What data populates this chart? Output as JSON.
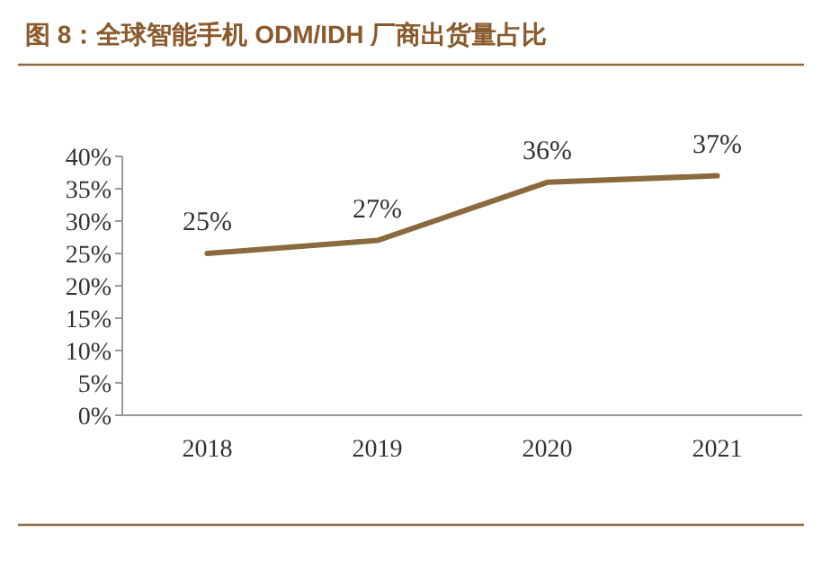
{
  "chart_data": {
    "type": "line",
    "title": "图 8：全球智能手机 ODM/IDH 厂商出货量占比",
    "categories": [
      "2018",
      "2019",
      "2020",
      "2021"
    ],
    "series": [
      {
        "color": "#8b6a3e",
        "values": [
          25,
          27,
          36,
          37
        ],
        "value_labels": [
          "25%",
          "27%",
          "36%",
          "37%"
        ]
      }
    ],
    "ylim": [
      0,
      40
    ],
    "yticks": [
      {
        "value": 0,
        "label": "0%"
      },
      {
        "value": 5,
        "label": "5%"
      },
      {
        "value": 10,
        "label": "10%"
      },
      {
        "value": 15,
        "label": "15%"
      },
      {
        "value": 20,
        "label": "20%"
      },
      {
        "value": 25,
        "label": "25%"
      },
      {
        "value": 30,
        "label": "30%"
      },
      {
        "value": 35,
        "label": "35%"
      },
      {
        "value": 40,
        "label": "40%"
      }
    ],
    "grid": false,
    "marker": "none",
    "line_style": "solid"
  }
}
